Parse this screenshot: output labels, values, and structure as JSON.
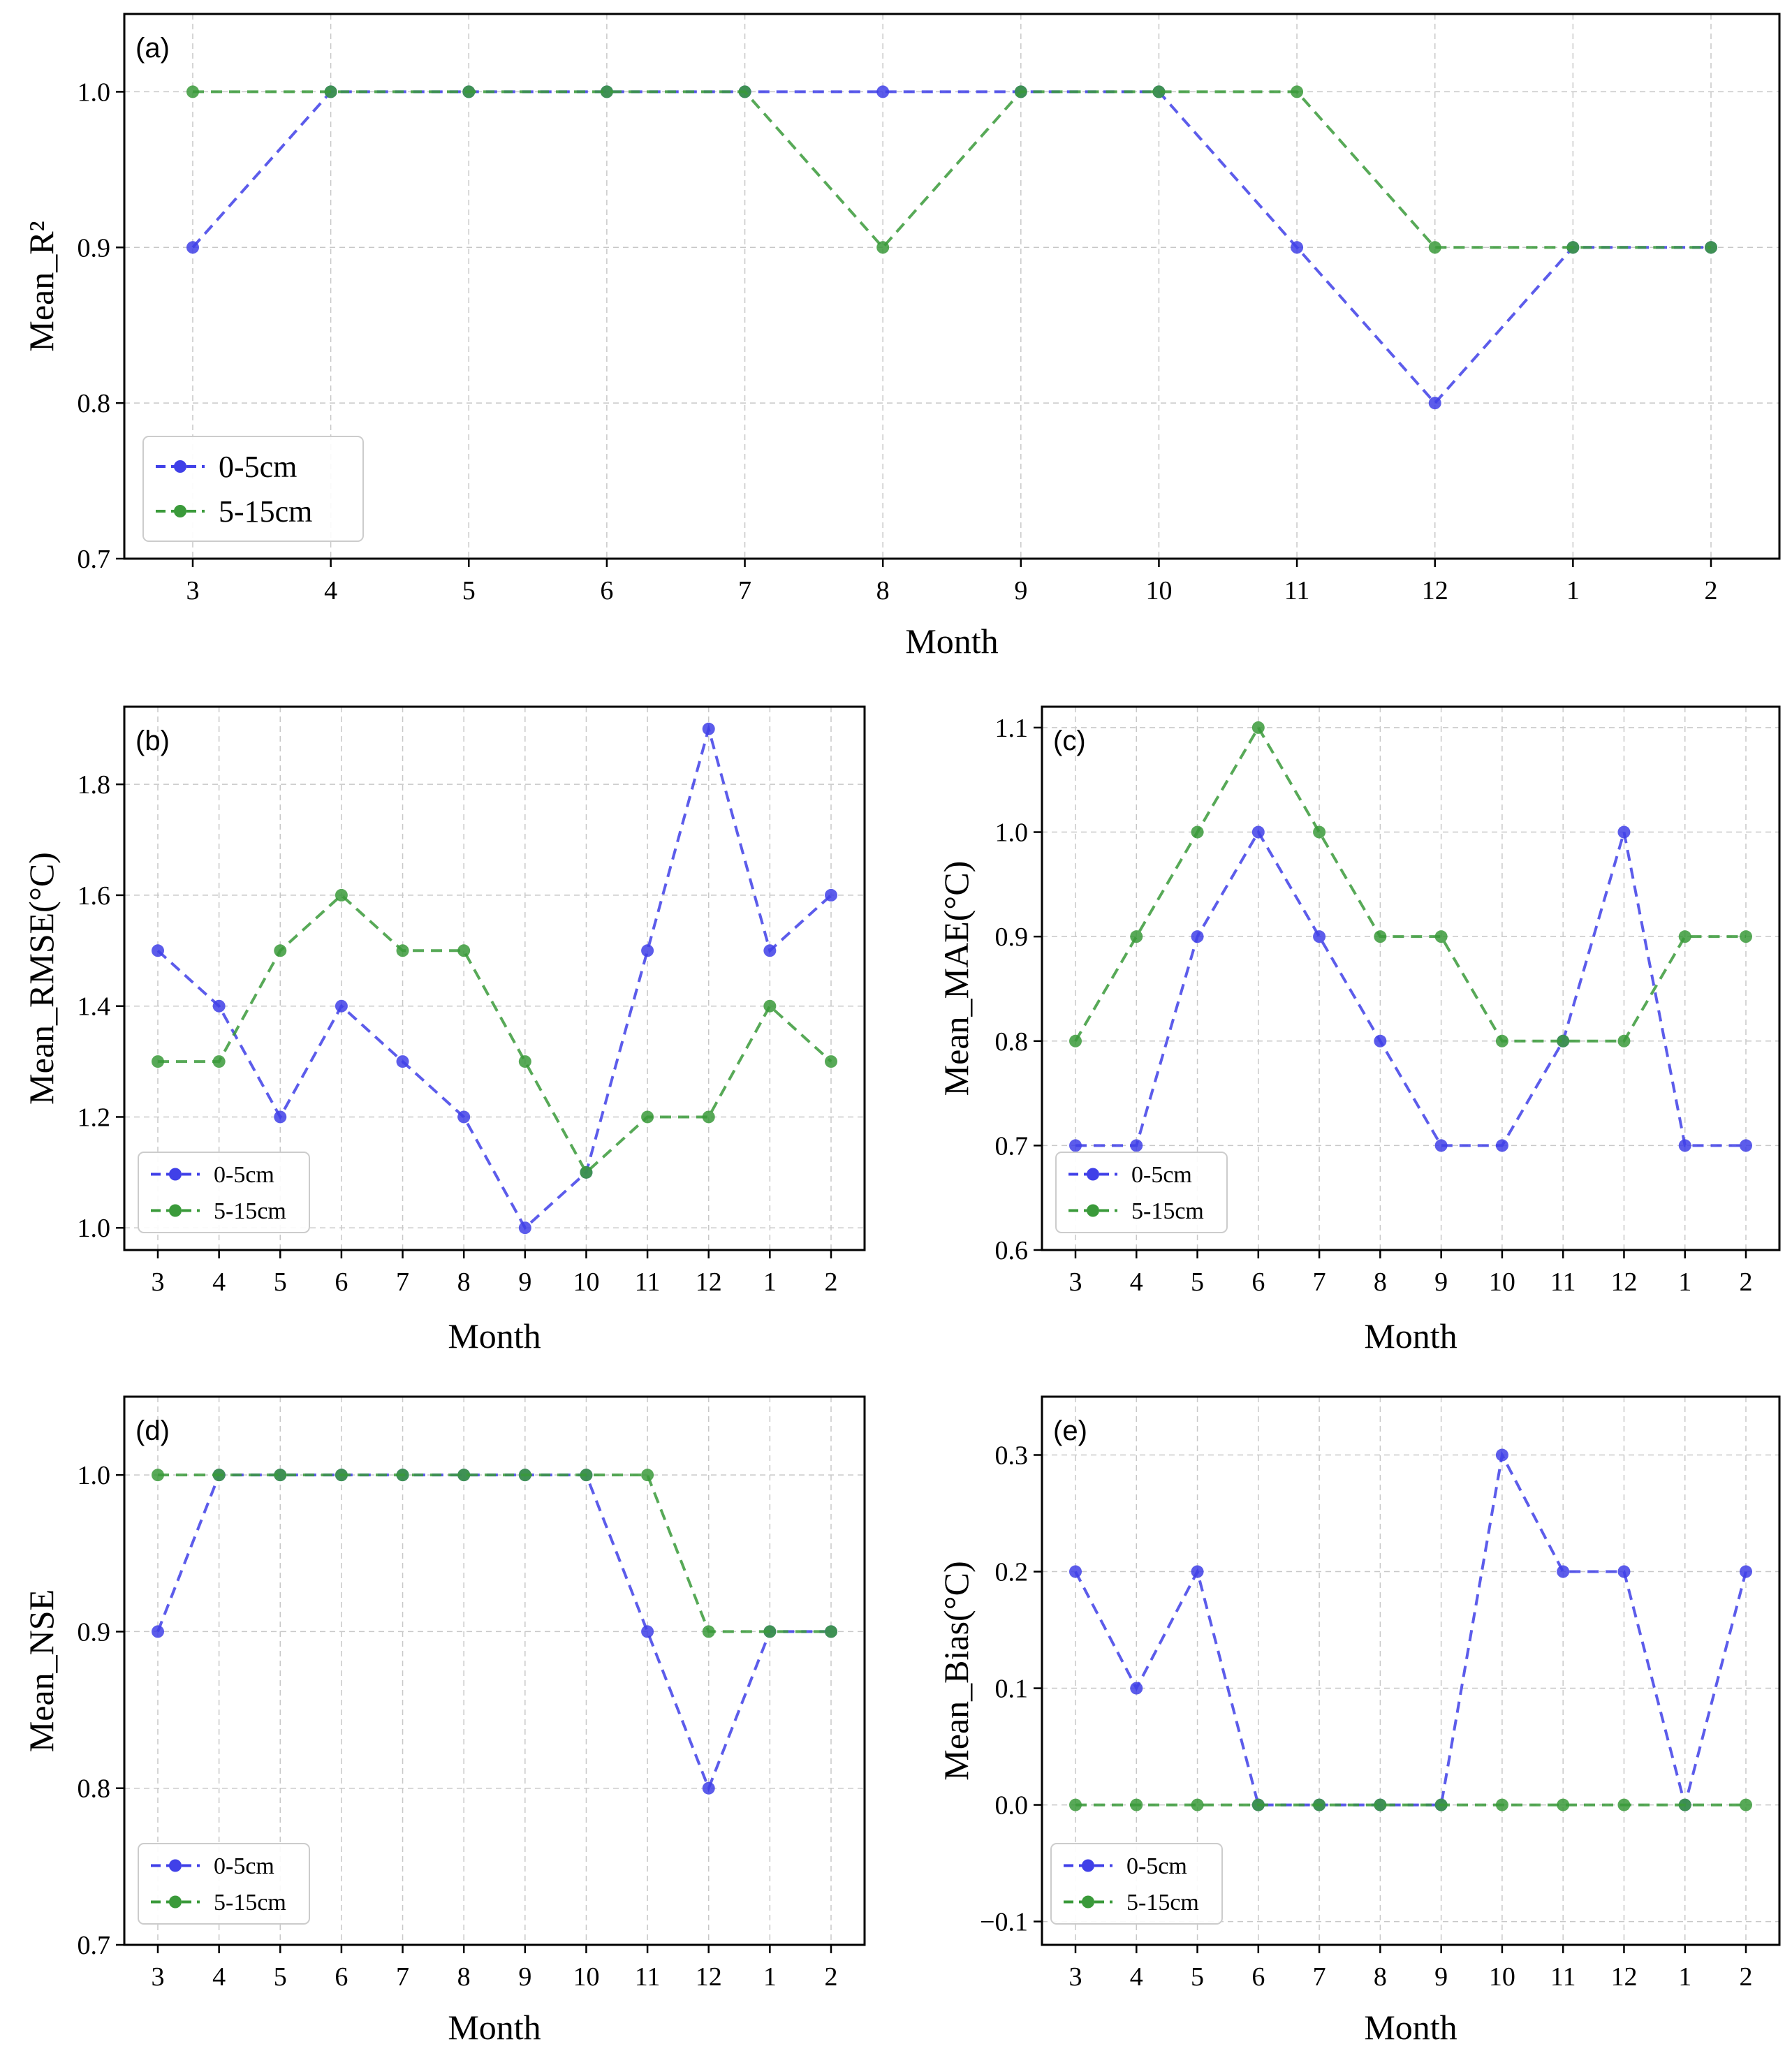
{
  "chart_data": [
    {
      "id": "a",
      "type": "line",
      "panel_label": "(a)",
      "xlabel": "Month",
      "ylabel": "Mean_R²",
      "categories": [
        "3",
        "4",
        "5",
        "6",
        "7",
        "8",
        "9",
        "10",
        "11",
        "12",
        "1",
        "2"
      ],
      "ylim": [
        0.7,
        1.05
      ],
      "yticks": [
        0.7,
        0.8,
        0.9,
        1.0
      ],
      "ytick_labels": [
        "0.7",
        "0.8",
        "0.9",
        "1.0"
      ],
      "grid": true,
      "legend_position": "bottom-left",
      "series": [
        {
          "name": "0-5cm",
          "color": "#4040e8",
          "values": [
            0.9,
            1.0,
            1.0,
            1.0,
            1.0,
            1.0,
            1.0,
            1.0,
            0.9,
            0.8,
            0.9,
            0.9
          ]
        },
        {
          "name": "5-15cm",
          "color": "#3a9a3a",
          "values": [
            1.0,
            1.0,
            1.0,
            1.0,
            1.0,
            0.9,
            1.0,
            1.0,
            1.0,
            0.9,
            0.9,
            0.9
          ]
        }
      ]
    },
    {
      "id": "b",
      "type": "line",
      "panel_label": "(b)",
      "xlabel": "Month",
      "ylabel": "Mean_RMSE(°C)",
      "categories": [
        "3",
        "4",
        "5",
        "6",
        "7",
        "8",
        "9",
        "10",
        "11",
        "12",
        "1",
        "2"
      ],
      "ylim": [
        0.96,
        1.94
      ],
      "yticks": [
        1.0,
        1.2,
        1.4,
        1.6,
        1.8
      ],
      "ytick_labels": [
        "1.0",
        "1.2",
        "1.4",
        "1.6",
        "1.8"
      ],
      "grid": true,
      "legend_position": "bottom-left",
      "series": [
        {
          "name": "0-5cm",
          "color": "#4040e8",
          "values": [
            1.5,
            1.4,
            1.2,
            1.4,
            1.3,
            1.2,
            1.0,
            1.1,
            1.5,
            1.9,
            1.5,
            1.6
          ]
        },
        {
          "name": "5-15cm",
          "color": "#3a9a3a",
          "values": [
            1.3,
            1.3,
            1.5,
            1.6,
            1.5,
            1.5,
            1.3,
            1.1,
            1.2,
            1.2,
            1.4,
            1.3
          ]
        }
      ]
    },
    {
      "id": "c",
      "type": "line",
      "panel_label": "(c)",
      "xlabel": "Month",
      "ylabel": "Mean_MAE(°C)",
      "categories": [
        "3",
        "4",
        "5",
        "6",
        "7",
        "8",
        "9",
        "10",
        "11",
        "12",
        "1",
        "2"
      ],
      "ylim": [
        0.6,
        1.12
      ],
      "yticks": [
        0.6,
        0.7,
        0.8,
        0.9,
        1.0,
        1.1
      ],
      "ytick_labels": [
        "0.6",
        "0.7",
        "0.8",
        "0.9",
        "1.0",
        "1.1"
      ],
      "grid": true,
      "legend_position": "bottom-left",
      "series": [
        {
          "name": "0-5cm",
          "color": "#4040e8",
          "values": [
            0.7,
            0.7,
            0.9,
            1.0,
            0.9,
            0.8,
            0.7,
            0.7,
            0.8,
            1.0,
            0.7,
            0.7
          ]
        },
        {
          "name": "5-15cm",
          "color": "#3a9a3a",
          "values": [
            0.8,
            0.9,
            1.0,
            1.1,
            1.0,
            0.9,
            0.9,
            0.8,
            0.8,
            0.8,
            0.9,
            0.9
          ]
        }
      ]
    },
    {
      "id": "d",
      "type": "line",
      "panel_label": "(d)",
      "xlabel": "Month",
      "ylabel": "Mean_NSE",
      "categories": [
        "3",
        "4",
        "5",
        "6",
        "7",
        "8",
        "9",
        "10",
        "11",
        "12",
        "1",
        "2"
      ],
      "ylim": [
        0.7,
        1.05
      ],
      "yticks": [
        0.7,
        0.8,
        0.9,
        1.0
      ],
      "ytick_labels": [
        "0.7",
        "0.8",
        "0.9",
        "1.0"
      ],
      "grid": true,
      "legend_position": "bottom-left",
      "series": [
        {
          "name": "0-5cm",
          "color": "#4040e8",
          "values": [
            0.9,
            1.0,
            1.0,
            1.0,
            1.0,
            1.0,
            1.0,
            1.0,
            0.9,
            0.8,
            0.9,
            0.9
          ]
        },
        {
          "name": "5-15cm",
          "color": "#3a9a3a",
          "values": [
            1.0,
            1.0,
            1.0,
            1.0,
            1.0,
            1.0,
            1.0,
            1.0,
            1.0,
            0.9,
            0.9,
            0.9
          ]
        }
      ]
    },
    {
      "id": "e",
      "type": "line",
      "panel_label": "(e)",
      "xlabel": "Month",
      "ylabel": "Mean_Bias(°C)",
      "categories": [
        "3",
        "4",
        "5",
        "6",
        "7",
        "8",
        "9",
        "10",
        "11",
        "12",
        "1",
        "2"
      ],
      "ylim": [
        -0.12,
        0.35
      ],
      "yticks": [
        -0.1,
        0.0,
        0.1,
        0.2,
        0.3
      ],
      "ytick_labels": [
        "−0.1",
        "0.0",
        "0.1",
        "0.2",
        "0.3"
      ],
      "grid": true,
      "legend_position": "bottom-left",
      "series": [
        {
          "name": "0-5cm",
          "color": "#4040e8",
          "values": [
            0.2,
            0.1,
            0.2,
            0.0,
            0.0,
            0.0,
            0.0,
            0.3,
            0.2,
            0.2,
            0.0,
            0.2
          ]
        },
        {
          "name": "5-15cm",
          "color": "#3a9a3a",
          "values": [
            0.0,
            0.0,
            0.0,
            0.0,
            0.0,
            0.0,
            0.0,
            0.0,
            0.0,
            0.0,
            0.0,
            0.0
          ]
        }
      ]
    }
  ]
}
